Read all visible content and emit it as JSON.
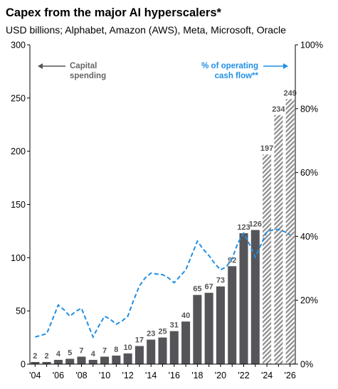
{
  "header": {
    "title": "Capex from the major AI hyperscalers*",
    "subtitle": "USD billions; Alphabet, Amazon (AWS), Meta, Microsoft, Oracle"
  },
  "colors": {
    "bar": "#555559",
    "forecast_hatch": "#8c8c8c",
    "line": "#1f8fe6",
    "axis": "#000000"
  },
  "chart_data": {
    "type": "bar",
    "x": [
      2004,
      2005,
      2006,
      2007,
      2008,
      2009,
      2010,
      2011,
      2012,
      2013,
      2014,
      2015,
      2016,
      2017,
      2018,
      2019,
      2020,
      2021,
      2022,
      2023,
      2024,
      2025,
      2026
    ],
    "categories": [
      "'04",
      "'05",
      "'06",
      "'07",
      "'08",
      "'09",
      "'10",
      "'11",
      "'12",
      "'13",
      "'14",
      "'15",
      "'16",
      "'17",
      "'18",
      "'19",
      "'20",
      "'21",
      "'22",
      "'23",
      "'24",
      "'25",
      "'26"
    ],
    "xtick_labels": [
      "'04",
      "'06",
      "'08",
      "'10",
      "'12",
      "'14",
      "'16",
      "'18",
      "'20",
      "'22",
      "'24",
      "'26"
    ],
    "series": [
      {
        "name": "Capital spending",
        "axis": "left",
        "values": [
          2,
          2,
          4,
          5,
          7,
          4,
          7,
          8,
          10,
          17,
          23,
          25,
          31,
          40,
          65,
          67,
          73,
          92,
          123,
          126,
          197,
          234,
          249
        ],
        "data_labels": [
          "2",
          "2",
          "4",
          "5",
          "7",
          "4",
          "7",
          "8",
          "10",
          "17",
          "23",
          "25",
          "31",
          "40",
          "65",
          "67",
          "73",
          "92",
          "123",
          "126",
          "197",
          "234",
          "249"
        ],
        "forecast_from_index": 20
      },
      {
        "name": "% of operating cash flow**",
        "axis": "right",
        "style": "dashed",
        "points": [
          [
            2004,
            8.5
          ],
          [
            2004.5,
            9
          ],
          [
            2005,
            9.5
          ],
          [
            2005.5,
            14
          ],
          [
            2006,
            18.5
          ],
          [
            2006.5,
            17
          ],
          [
            2007,
            15
          ],
          [
            2007.5,
            16.5
          ],
          [
            2008,
            17.5
          ],
          [
            2008.5,
            13
          ],
          [
            2009,
            8.5
          ],
          [
            2009.5,
            12
          ],
          [
            2010,
            15
          ],
          [
            2010.5,
            14
          ],
          [
            2011,
            12.5
          ],
          [
            2011.5,
            13.5
          ],
          [
            2012,
            15
          ],
          [
            2012.5,
            20
          ],
          [
            2013,
            24.5
          ],
          [
            2013.5,
            27
          ],
          [
            2014,
            28.5
          ],
          [
            2014.5,
            28.2
          ],
          [
            2015,
            28
          ],
          [
            2015.5,
            27
          ],
          [
            2016,
            25.5
          ],
          [
            2016.5,
            27.5
          ],
          [
            2017,
            29.5
          ],
          [
            2017.5,
            34
          ],
          [
            2018,
            38.5
          ],
          [
            2018.5,
            36
          ],
          [
            2019,
            34
          ],
          [
            2019.5,
            31.5
          ],
          [
            2020,
            29.5
          ],
          [
            2020.5,
            30.5
          ],
          [
            2021,
            33
          ],
          [
            2021.5,
            38
          ],
          [
            2022,
            41
          ],
          [
            2022.5,
            37.5
          ],
          [
            2023,
            33.5
          ],
          [
            2023.5,
            37.5
          ],
          [
            2024,
            41.5
          ],
          [
            2024.5,
            42
          ],
          [
            2025,
            42.2
          ],
          [
            2025.5,
            41.5
          ],
          [
            2026,
            40.5
          ]
        ]
      }
    ],
    "y_left": {
      "min": 0,
      "max": 300,
      "ticks": [
        0,
        50,
        100,
        150,
        200,
        250,
        300
      ]
    },
    "y_right": {
      "min": 0,
      "max": 100,
      "ticks": [
        0,
        20,
        40,
        60,
        80,
        100
      ],
      "tick_labels": [
        "0%",
        "20%",
        "40%",
        "60%",
        "80%",
        "100%"
      ]
    },
    "annotations": {
      "left": {
        "line1": "Capital",
        "line2": "spending"
      },
      "right": {
        "line1": "% of operating",
        "line2": "cash flow**"
      }
    },
    "grid": false,
    "legend": "none"
  }
}
